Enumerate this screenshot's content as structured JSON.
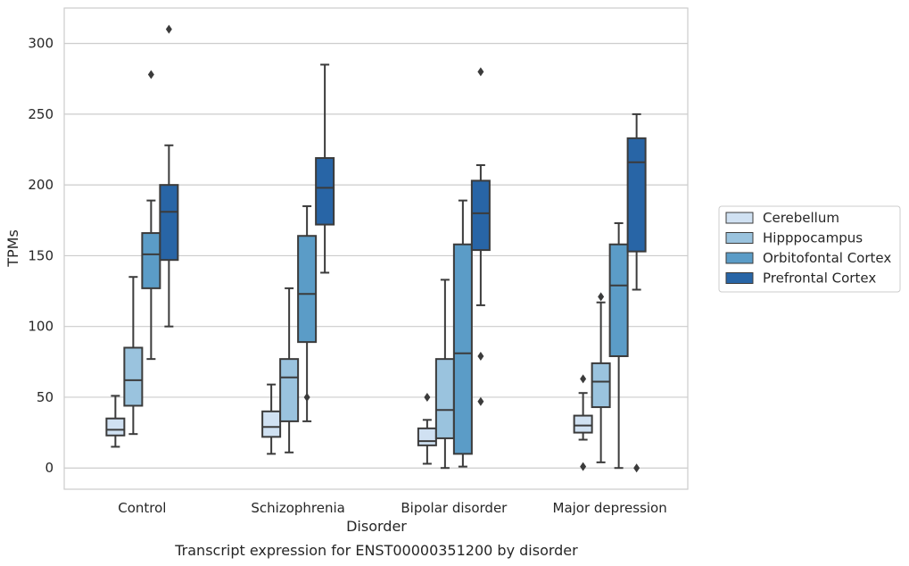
{
  "caption": "Transcript expression for ENST00000351200 by disorder",
  "chart_data": {
    "type": "boxplot",
    "xlabel": "Disorder",
    "ylabel": "TPMs",
    "ylim": [
      -15,
      325
    ],
    "yticks": [
      0,
      50,
      100,
      150,
      200,
      250,
      300
    ],
    "grid": "horizontal",
    "legend_position": "right",
    "categories": [
      "Control",
      "Schizophrenia",
      "Bipolar disorder",
      "Major depression"
    ],
    "series": [
      {
        "name": "Cerebellum",
        "color": "#d0e1f2",
        "boxes": [
          {
            "whislo": 15,
            "q1": 23,
            "med": 27,
            "q3": 35,
            "whishi": 51,
            "fliers": []
          },
          {
            "whislo": 10,
            "q1": 22,
            "med": 29,
            "q3": 40,
            "whishi": 59,
            "fliers": []
          },
          {
            "whislo": 3,
            "q1": 16,
            "med": 19,
            "q3": 28,
            "whishi": 34,
            "fliers": [
              50
            ]
          },
          {
            "whislo": 20,
            "q1": 25,
            "med": 30,
            "q3": 37,
            "whishi": 53,
            "fliers": [
              1,
              63
            ]
          }
        ]
      },
      {
        "name": "Hipppocampus",
        "color": "#9ac3de",
        "boxes": [
          {
            "whislo": 24,
            "q1": 44,
            "med": 62,
            "q3": 85,
            "whishi": 135,
            "fliers": []
          },
          {
            "whislo": 11,
            "q1": 33,
            "med": 64,
            "q3": 77,
            "whishi": 127,
            "fliers": []
          },
          {
            "whislo": 0,
            "q1": 21,
            "med": 41,
            "q3": 77,
            "whishi": 133,
            "fliers": []
          },
          {
            "whislo": 4,
            "q1": 43,
            "med": 61,
            "q3": 74,
            "whishi": 117,
            "fliers": [
              121
            ]
          }
        ]
      },
      {
        "name": "Orbitofontal Cortex",
        "color": "#5b9cc7",
        "boxes": [
          {
            "whislo": 77,
            "q1": 127,
            "med": 151,
            "q3": 166,
            "whishi": 189,
            "fliers": [
              278
            ]
          },
          {
            "whislo": 33,
            "q1": 89,
            "med": 123,
            "q3": 164,
            "whishi": 185,
            "fliers": [
              50
            ]
          },
          {
            "whislo": 1,
            "q1": 10,
            "med": 81,
            "q3": 158,
            "whishi": 189,
            "fliers": []
          },
          {
            "whislo": 0,
            "q1": 79,
            "med": 129,
            "q3": 158,
            "whishi": 173,
            "fliers": []
          }
        ]
      },
      {
        "name": "Prefrontal Cortex",
        "color": "#2865a6",
        "boxes": [
          {
            "whislo": 100,
            "q1": 147,
            "med": 181,
            "q3": 200,
            "whishi": 228,
            "fliers": [
              310
            ]
          },
          {
            "whislo": 138,
            "q1": 172,
            "med": 198,
            "q3": 219,
            "whishi": 285,
            "fliers": []
          },
          {
            "whislo": 115,
            "q1": 154,
            "med": 180,
            "q3": 203,
            "whishi": 214,
            "fliers": [
              47,
              79,
              280
            ]
          },
          {
            "whislo": 126,
            "q1": 153,
            "med": 216,
            "q3": 233,
            "whishi": 250,
            "fliers": [
              0
            ]
          }
        ]
      }
    ]
  }
}
